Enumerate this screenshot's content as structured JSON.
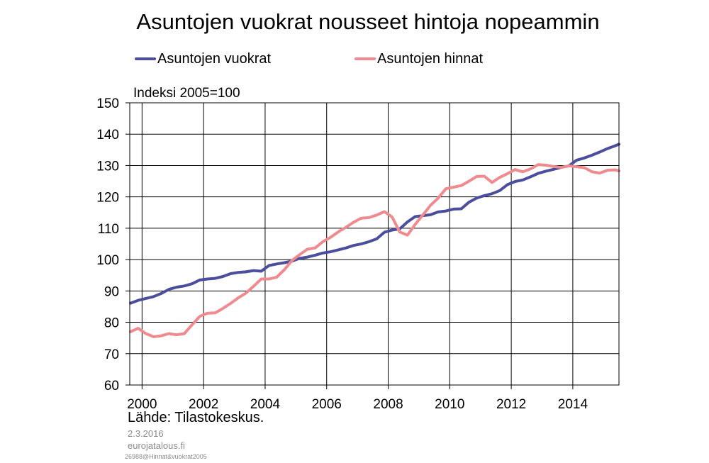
{
  "title": "Asuntojen vuokrat nousseet hintoja nopeammin",
  "unit_label": "Indeksi 2005=100",
  "source": "Lähde: Tilastokeskus.",
  "date": "2.3.2016",
  "site": "eurojatalous.fi",
  "code": "26988@Hinnat&vuokrat2005",
  "colors": {
    "rents": "#4b4e9c",
    "prices": "#ef8a8f",
    "grid": "#000000"
  },
  "chart_data": {
    "type": "line",
    "ylim": [
      60,
      150
    ],
    "yticks": [
      60,
      70,
      80,
      90,
      100,
      110,
      120,
      130,
      140,
      150
    ],
    "xlim": [
      1999.6,
      2015.5
    ],
    "xticks": [
      2000,
      2002,
      2004,
      2006,
      2008,
      2010,
      2012,
      2014
    ],
    "xtick_labels": [
      "2000",
      "2002",
      "2004",
      "2006",
      "2008",
      "2010",
      "2012",
      "2014"
    ],
    "grid": true,
    "legend_position": "top",
    "series": [
      {
        "name": "Asuntojen vuokrat",
        "key": "rents",
        "points": [
          [
            1999.625,
            86.1
          ],
          [
            1999.875,
            87.0
          ],
          [
            2000.125,
            87.6
          ],
          [
            2000.375,
            88.2
          ],
          [
            2000.625,
            89.2
          ],
          [
            2000.875,
            90.5
          ],
          [
            2001.125,
            91.2
          ],
          [
            2001.375,
            91.6
          ],
          [
            2001.625,
            92.3
          ],
          [
            2001.875,
            93.5
          ],
          [
            2002.125,
            93.8
          ],
          [
            2002.375,
            94.0
          ],
          [
            2002.625,
            94.6
          ],
          [
            2002.875,
            95.5
          ],
          [
            2003.125,
            95.9
          ],
          [
            2003.375,
            96.1
          ],
          [
            2003.625,
            96.5
          ],
          [
            2003.875,
            96.3
          ],
          [
            2004.125,
            98.1
          ],
          [
            2004.375,
            98.6
          ],
          [
            2004.625,
            99.0
          ],
          [
            2004.875,
            99.5
          ],
          [
            2005.125,
            100.4
          ],
          [
            2005.375,
            100.8
          ],
          [
            2005.625,
            101.4
          ],
          [
            2005.875,
            102.1
          ],
          [
            2006.125,
            102.5
          ],
          [
            2006.375,
            103.1
          ],
          [
            2006.625,
            103.7
          ],
          [
            2006.875,
            104.5
          ],
          [
            2007.125,
            105.0
          ],
          [
            2007.375,
            105.7
          ],
          [
            2007.625,
            106.6
          ],
          [
            2007.875,
            108.7
          ],
          [
            2008.125,
            109.4
          ],
          [
            2008.375,
            109.8
          ],
          [
            2008.625,
            112.0
          ],
          [
            2008.875,
            113.7
          ],
          [
            2009.125,
            114.0
          ],
          [
            2009.375,
            114.3
          ],
          [
            2009.625,
            115.2
          ],
          [
            2009.875,
            115.5
          ],
          [
            2010.125,
            116.1
          ],
          [
            2010.375,
            116.2
          ],
          [
            2010.625,
            118.3
          ],
          [
            2010.875,
            119.6
          ],
          [
            2011.125,
            120.4
          ],
          [
            2011.375,
            121.0
          ],
          [
            2011.625,
            122.0
          ],
          [
            2011.875,
            123.9
          ],
          [
            2012.125,
            124.9
          ],
          [
            2012.375,
            125.4
          ],
          [
            2012.625,
            126.4
          ],
          [
            2012.875,
            127.5
          ],
          [
            2013.125,
            128.2
          ],
          [
            2013.375,
            128.8
          ],
          [
            2013.625,
            129.4
          ],
          [
            2013.875,
            129.9
          ],
          [
            2014.125,
            131.7
          ],
          [
            2014.375,
            132.4
          ],
          [
            2014.625,
            133.3
          ],
          [
            2014.875,
            134.3
          ],
          [
            2015.125,
            135.4
          ],
          [
            2015.375,
            136.3
          ],
          [
            2015.5,
            136.8
          ]
        ]
      },
      {
        "name": "Asuntojen hinnat",
        "key": "prices",
        "points": [
          [
            1999.625,
            77.0
          ],
          [
            1999.875,
            78.1
          ],
          [
            2000.125,
            76.4
          ],
          [
            2000.375,
            75.4
          ],
          [
            2000.625,
            75.7
          ],
          [
            2000.875,
            76.4
          ],
          [
            2001.125,
            76.0
          ],
          [
            2001.375,
            76.4
          ],
          [
            2001.625,
            79.2
          ],
          [
            2001.875,
            81.9
          ],
          [
            2002.125,
            82.9
          ],
          [
            2002.375,
            83.0
          ],
          [
            2002.625,
            84.4
          ],
          [
            2002.875,
            86.0
          ],
          [
            2003.125,
            87.8
          ],
          [
            2003.375,
            89.3
          ],
          [
            2003.625,
            91.5
          ],
          [
            2003.875,
            93.8
          ],
          [
            2004.125,
            93.8
          ],
          [
            2004.375,
            94.4
          ],
          [
            2004.625,
            96.8
          ],
          [
            2004.875,
            99.7
          ],
          [
            2005.125,
            101.6
          ],
          [
            2005.375,
            103.3
          ],
          [
            2005.625,
            103.7
          ],
          [
            2005.875,
            105.7
          ],
          [
            2006.125,
            107.1
          ],
          [
            2006.375,
            108.8
          ],
          [
            2006.625,
            110.3
          ],
          [
            2006.875,
            111.9
          ],
          [
            2007.125,
            113.2
          ],
          [
            2007.375,
            113.4
          ],
          [
            2007.625,
            114.2
          ],
          [
            2007.875,
            115.3
          ],
          [
            2008.125,
            113.6
          ],
          [
            2008.375,
            108.8
          ],
          [
            2008.625,
            107.8
          ],
          [
            2008.875,
            111.2
          ],
          [
            2009.125,
            114.2
          ],
          [
            2009.375,
            117.3
          ],
          [
            2009.625,
            119.6
          ],
          [
            2009.875,
            122.6
          ],
          [
            2010.125,
            123.1
          ],
          [
            2010.375,
            123.6
          ],
          [
            2010.625,
            125.0
          ],
          [
            2010.875,
            126.5
          ],
          [
            2011.125,
            126.6
          ],
          [
            2011.375,
            124.6
          ],
          [
            2011.625,
            126.2
          ],
          [
            2011.875,
            127.4
          ],
          [
            2012.125,
            128.7
          ],
          [
            2012.375,
            128.0
          ],
          [
            2012.625,
            128.9
          ],
          [
            2012.875,
            130.3
          ],
          [
            2013.125,
            130.1
          ],
          [
            2013.375,
            129.7
          ],
          [
            2013.625,
            129.4
          ],
          [
            2013.875,
            129.9
          ],
          [
            2014.125,
            129.6
          ],
          [
            2014.375,
            129.3
          ],
          [
            2014.625,
            128.0
          ],
          [
            2014.875,
            127.6
          ],
          [
            2015.125,
            128.5
          ],
          [
            2015.375,
            128.6
          ],
          [
            2015.5,
            128.3
          ]
        ]
      }
    ]
  }
}
